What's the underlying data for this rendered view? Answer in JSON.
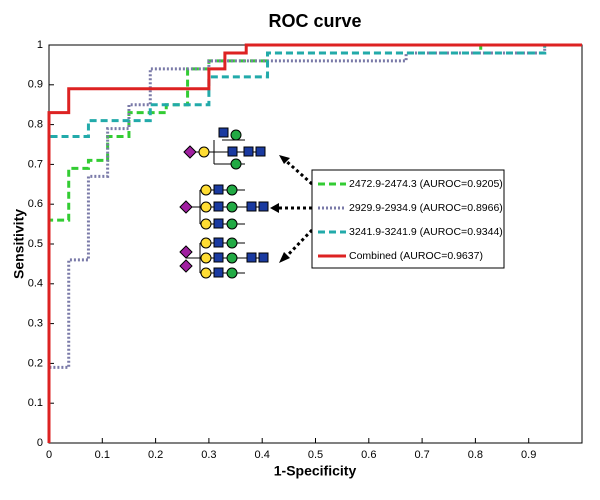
{
  "chart_data": {
    "type": "line",
    "title": "ROC curve",
    "x_label": "1-Specificity",
    "y_label": "Sensitivity",
    "xlim": [
      0,
      1
    ],
    "ylim": [
      0,
      1
    ],
    "xticks": [
      0,
      0.1,
      0.2,
      0.3,
      0.4,
      0.5,
      0.6,
      0.7,
      0.8,
      0.9
    ],
    "yticks": [
      0,
      0.1,
      0.2,
      0.3,
      0.4,
      0.5,
      0.6,
      0.7,
      0.8,
      0.9,
      1
    ],
    "series": [
      {
        "name": "2472.9-2474.3 (AUROC=0.9205)",
        "color": "#33cc33",
        "dash": "7,4",
        "x": [
          0,
          0,
          0.037,
          0.037,
          0.074,
          0.074,
          0.11,
          0.11,
          0.15,
          0.15,
          0.22,
          0.22,
          0.26,
          0.26,
          0.3,
          0.3,
          0.41,
          0.41,
          0.81,
          0.81,
          1
        ],
        "values": [
          0,
          0.56,
          0.56,
          0.69,
          0.69,
          0.71,
          0.71,
          0.77,
          0.77,
          0.83,
          0.83,
          0.85,
          0.85,
          0.94,
          0.94,
          0.96,
          0.96,
          0.98,
          0.98,
          1,
          1
        ]
      },
      {
        "name": "2929.9-2934.9 (AUROC=0.8966)",
        "color": "#7a7aa8",
        "dash": "2,2",
        "x": [
          0,
          0,
          0.037,
          0.037,
          0.074,
          0.074,
          0.11,
          0.11,
          0.15,
          0.15,
          0.19,
          0.19,
          0.3,
          0.3,
          0.67,
          0.67,
          0.93,
          0.93,
          1
        ],
        "values": [
          0,
          0.19,
          0.19,
          0.46,
          0.46,
          0.67,
          0.67,
          0.79,
          0.79,
          0.85,
          0.85,
          0.94,
          0.94,
          0.96,
          0.96,
          0.98,
          0.98,
          1,
          1
        ]
      },
      {
        "name": "3241.9-3241.9 (AUROC=0.9344)",
        "color": "#22aaaa",
        "dash": "7,4",
        "x": [
          0,
          0,
          0.074,
          0.074,
          0.19,
          0.19,
          0.3,
          0.3,
          0.41,
          0.41,
          0.93,
          0.93,
          1
        ],
        "values": [
          0,
          0.77,
          0.77,
          0.81,
          0.81,
          0.85,
          0.85,
          0.92,
          0.92,
          0.98,
          0.98,
          1,
          1
        ]
      },
      {
        "name": "Combined (AUROC=0.9637)",
        "color": "#dd2222",
        "dash": "none",
        "x": [
          0,
          0,
          0.037,
          0.037,
          0.3,
          0.3,
          0.33,
          0.33,
          0.37,
          0.37,
          1
        ],
        "values": [
          0,
          0.83,
          0.83,
          0.89,
          0.89,
          0.94,
          0.94,
          0.98,
          0.98,
          1,
          1
        ]
      }
    ]
  }
}
